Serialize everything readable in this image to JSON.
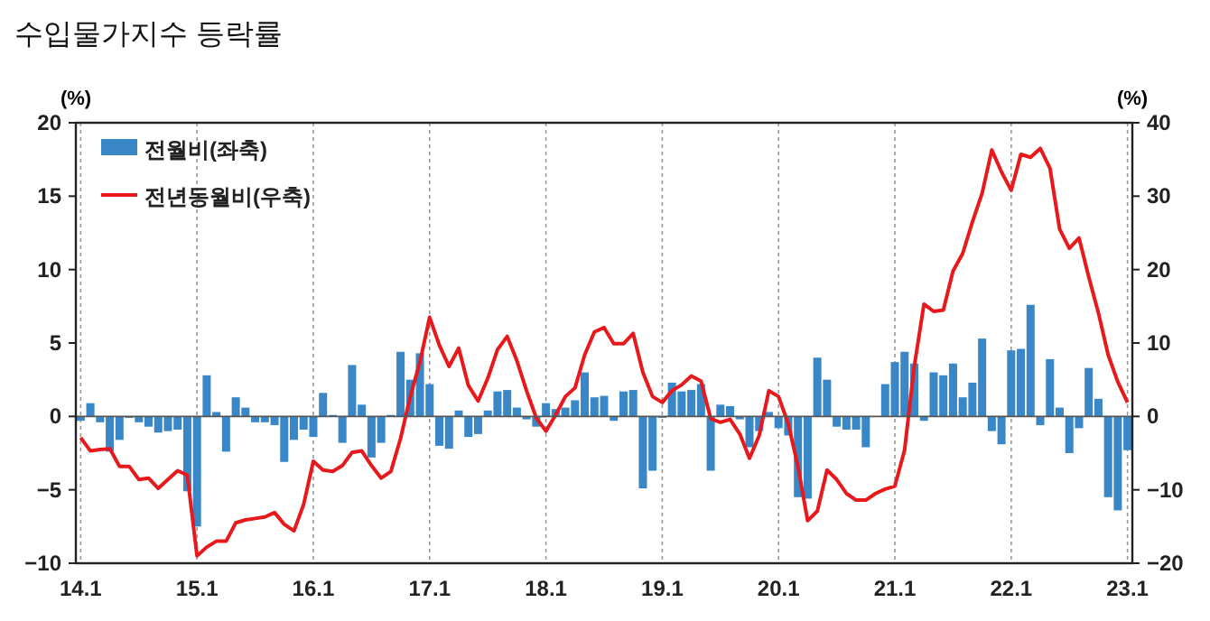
{
  "chart_data": {
    "type": "bar",
    "title": "수입물가지수 등락률",
    "ylabel": "(%)",
    "y2label": "(%)",
    "categories": [
      "14.1",
      null,
      null,
      null,
      null,
      null,
      null,
      null,
      null,
      null,
      null,
      null,
      "15.1",
      null,
      null,
      null,
      null,
      null,
      null,
      null,
      null,
      null,
      null,
      null,
      "16.1",
      null,
      null,
      null,
      null,
      null,
      null,
      null,
      null,
      null,
      null,
      null,
      "17.1",
      null,
      null,
      null,
      null,
      null,
      null,
      null,
      null,
      null,
      null,
      null,
      "18.1",
      null,
      null,
      null,
      null,
      null,
      null,
      null,
      null,
      null,
      null,
      null,
      "19.1",
      null,
      null,
      null,
      null,
      null,
      null,
      null,
      null,
      null,
      null,
      null,
      "20.1",
      null,
      null,
      null,
      null,
      null,
      null,
      null,
      null,
      null,
      null,
      null,
      "21.1",
      null,
      null,
      null,
      null,
      null,
      null,
      null,
      null,
      null,
      null,
      null,
      "22.1",
      null,
      null,
      null,
      null,
      null,
      null,
      null,
      null,
      null,
      null,
      null,
      "23.1"
    ],
    "series": [
      {
        "name": "전월비(좌축)",
        "color": "#3a87c8",
        "values": [
          -0.3,
          0.9,
          -0.4,
          -2.4,
          -1.6,
          -0.1,
          -0.4,
          -0.7,
          -1.1,
          -1.0,
          -0.9,
          -5.1,
          -7.5,
          2.8,
          0.3,
          -2.4,
          1.3,
          0.6,
          -0.4,
          -0.4,
          -0.6,
          -3.1,
          -1.6,
          -0.9,
          -1.4,
          1.6,
          0.1,
          -1.8,
          3.5,
          0.8,
          -2.8,
          -1.8,
          0.1,
          4.4,
          2.5,
          4.3,
          2.2,
          -2.0,
          -2.2,
          0.4,
          -1.4,
          -1.2,
          0.4,
          1.7,
          1.8,
          0.6,
          -0.2,
          -0.7,
          0.9,
          0.5,
          0.6,
          1.1,
          3.0,
          1.3,
          1.4,
          -0.3,
          1.7,
          1.8,
          -4.9,
          -3.7,
          -0.1,
          2.3,
          1.7,
          1.8,
          2.2,
          -3.7,
          0.8,
          0.7,
          -0.2,
          -2.1,
          -1.0,
          0.3,
          -0.8,
          -1.3,
          -5.5,
          -5.6,
          4.0,
          2.5,
          -0.7,
          -0.9,
          -0.9,
          -2.1,
          0.0,
          2.2,
          3.7,
          4.4,
          3.6,
          -0.3,
          3.0,
          2.8,
          3.6,
          1.3,
          2.3,
          5.3,
          -1.0,
          -1.9,
          4.5,
          4.6,
          7.6,
          -0.6,
          3.9,
          0.6,
          -2.5,
          -0.8,
          3.3,
          1.2,
          -5.5,
          -6.4,
          -2.3
        ]
      },
      {
        "name": "전년동월비(우축)",
        "type": "line",
        "axis": "y2",
        "color": "#e8191c",
        "values": [
          -2.9,
          -4.7,
          -4.5,
          -4.4,
          -6.8,
          -6.8,
          -8.6,
          -8.4,
          -9.8,
          -8.6,
          -7.4,
          -8.0,
          -19.0,
          -17.8,
          -17.0,
          -17.0,
          -14.5,
          -14.1,
          -13.9,
          -13.7,
          -13.1,
          -14.7,
          -15.6,
          -12.0,
          -6.1,
          -7.3,
          -7.5,
          -6.7,
          -4.9,
          -4.7,
          -6.7,
          -8.4,
          -7.5,
          -3.0,
          2.7,
          7.4,
          13.5,
          9.7,
          6.8,
          9.3,
          4.2,
          2.1,
          5.2,
          9.1,
          10.9,
          7.6,
          3.5,
          -0.2,
          -2.0,
          0.2,
          2.7,
          3.9,
          8.4,
          11.5,
          12.1,
          9.9,
          9.9,
          11.3,
          6.0,
          2.7,
          1.9,
          3.5,
          4.3,
          5.5,
          4.8,
          -0.3,
          -0.8,
          -0.4,
          -2.4,
          -5.7,
          -2.6,
          3.5,
          2.7,
          -1.0,
          -6.8,
          -14.2,
          -12.9,
          -7.3,
          -8.6,
          -10.5,
          -11.4,
          -11.4,
          -10.5,
          -9.9,
          -9.5,
          -4.6,
          6.8,
          15.3,
          14.3,
          14.5,
          19.8,
          22.2,
          26.5,
          30.4,
          36.3,
          33.3,
          30.8,
          35.7,
          35.3,
          36.5,
          33.8,
          25.5,
          22.9,
          24.3,
          19.0,
          14.1,
          8.4,
          4.7,
          1.9
        ]
      }
    ],
    "ylim": [
      -10,
      20
    ],
    "yticks": [
      -10,
      -5,
      0,
      5,
      10,
      15,
      20
    ],
    "y2lim": [
      -20,
      40
    ],
    "y2ticks": [
      -20,
      -10,
      0,
      10,
      20,
      30,
      40
    ],
    "grid": "x",
    "legend": "top left"
  }
}
